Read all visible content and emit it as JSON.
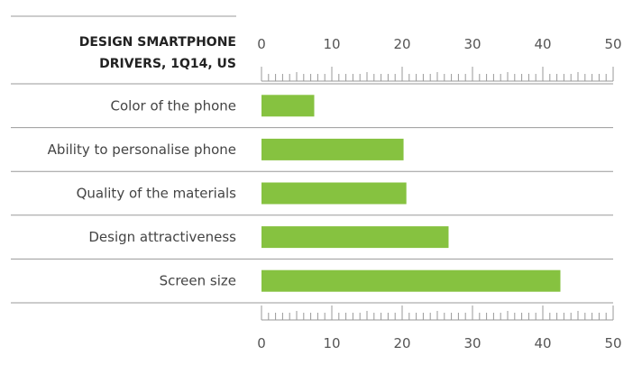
{
  "chart_data": {
    "type": "bar",
    "orientation": "horizontal",
    "title_lines": [
      "DESIGN SMARTPHONE",
      "DRIVERS, 1Q14, US"
    ],
    "categories": [
      "Color of the phone",
      "Ability to personalise phone",
      "Quality of the materials",
      "Design attractiveness",
      "Screen size"
    ],
    "values": [
      7.5,
      20.2,
      20.6,
      26.6,
      42.5
    ],
    "xlim": [
      0,
      50
    ],
    "major_ticks": [
      0,
      10,
      20,
      30,
      40,
      50
    ],
    "minor_tick_step": 1,
    "axes": "top-and-bottom",
    "grid": "row-separators",
    "bar_color": "#86c240",
    "text_color": "#444444",
    "line_color": "#999999"
  }
}
